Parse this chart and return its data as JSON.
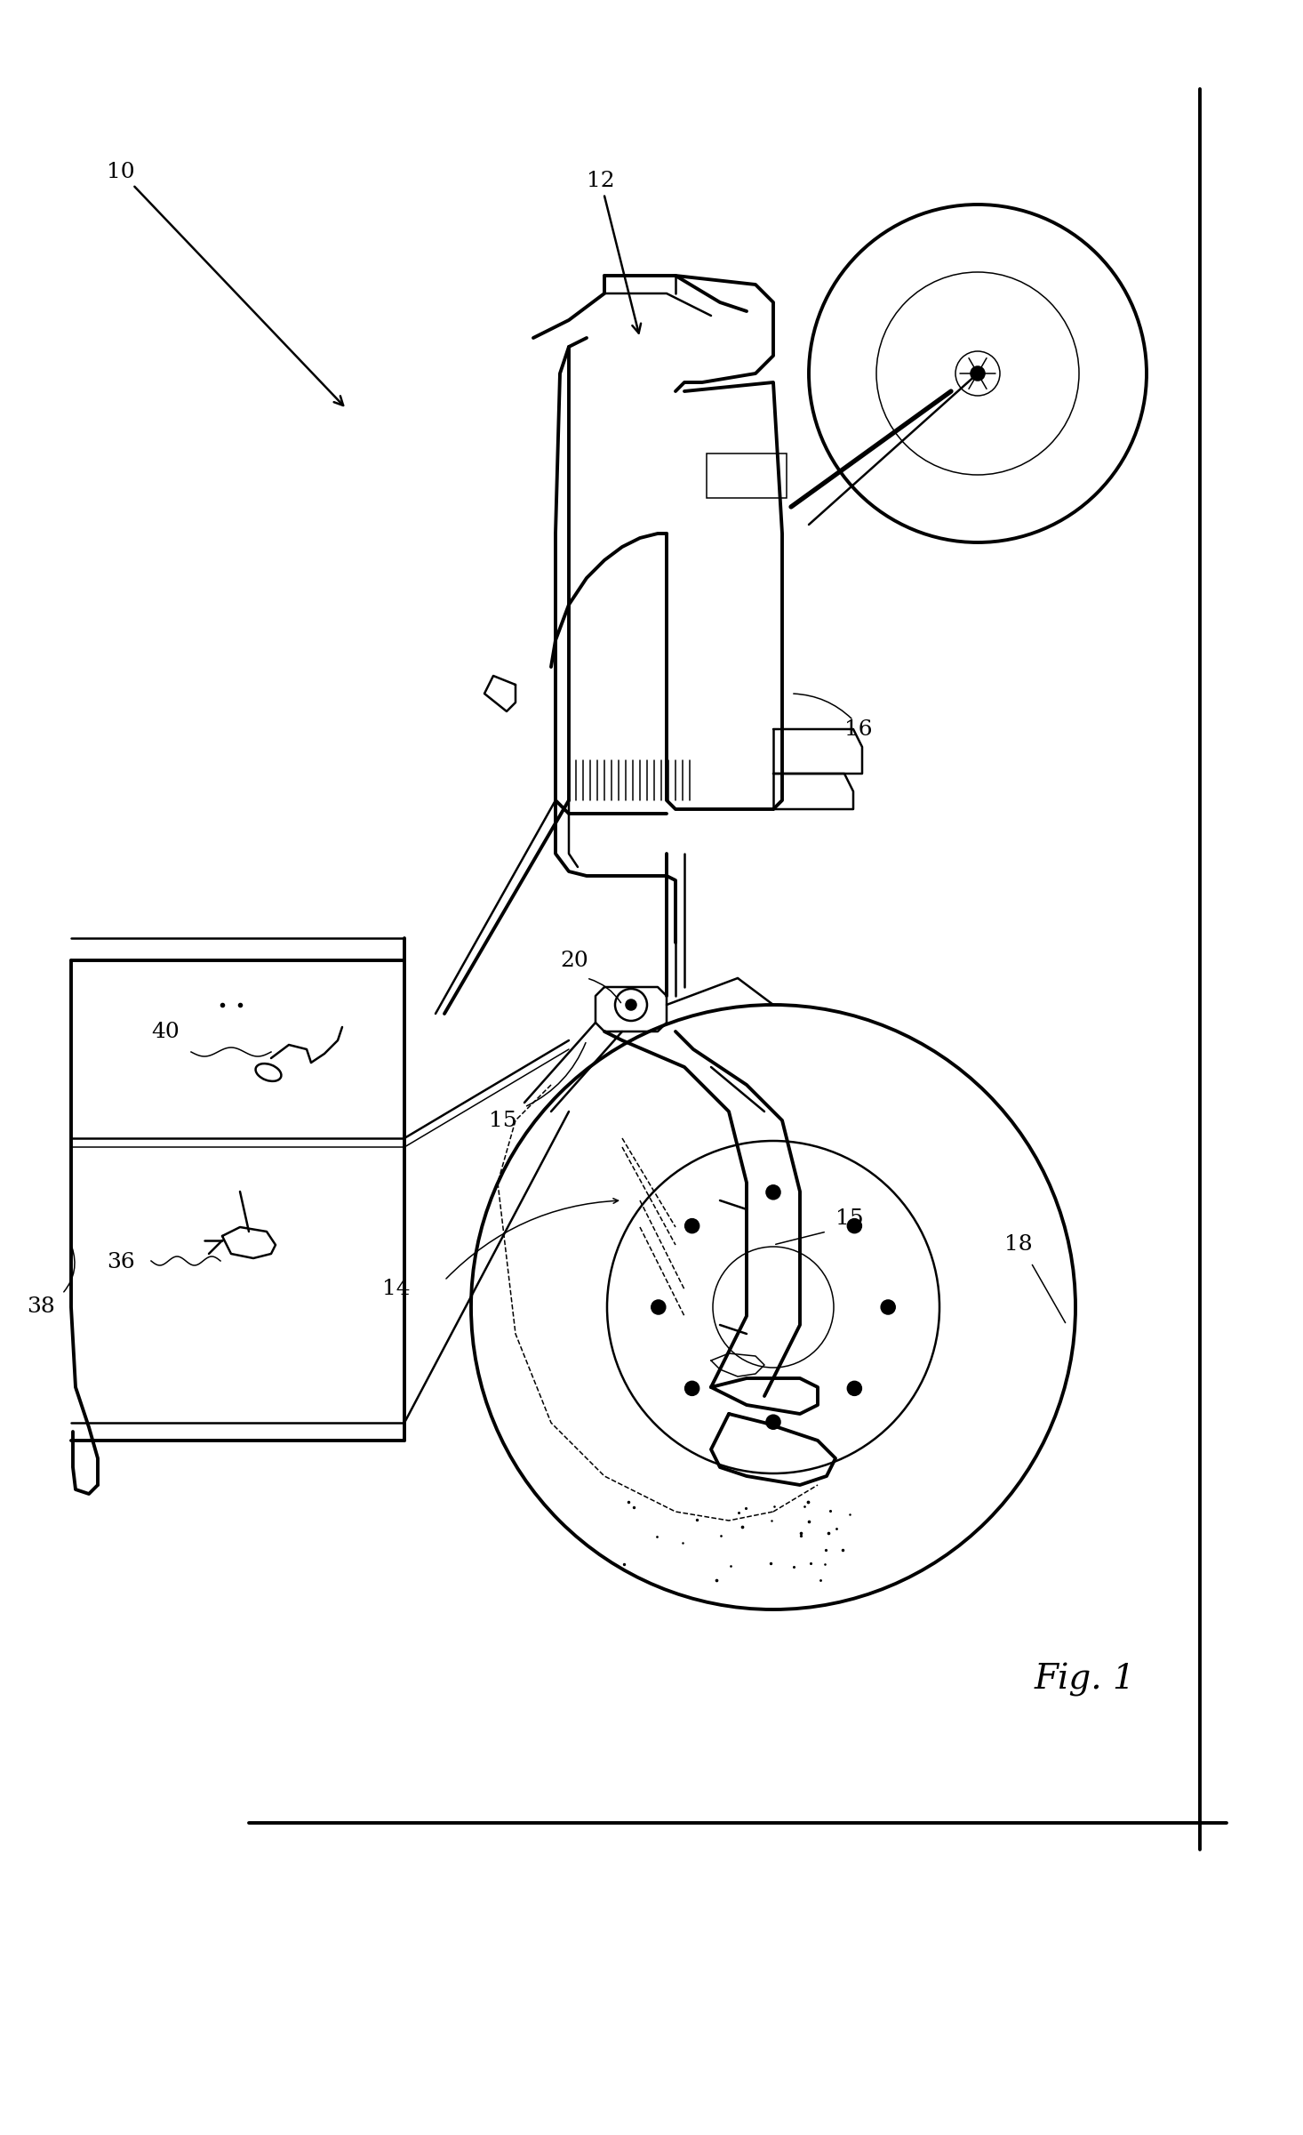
{
  "background_color": "#ffffff",
  "line_color": "#000000",
  "fig_width": 14.66,
  "fig_height": 24.01,
  "lw_thick": 2.8,
  "lw_med": 1.8,
  "lw_thin": 1.1,
  "label_fontsize": 18,
  "fig_label": "Fig. 1",
  "fig_label_fontsize": 28
}
